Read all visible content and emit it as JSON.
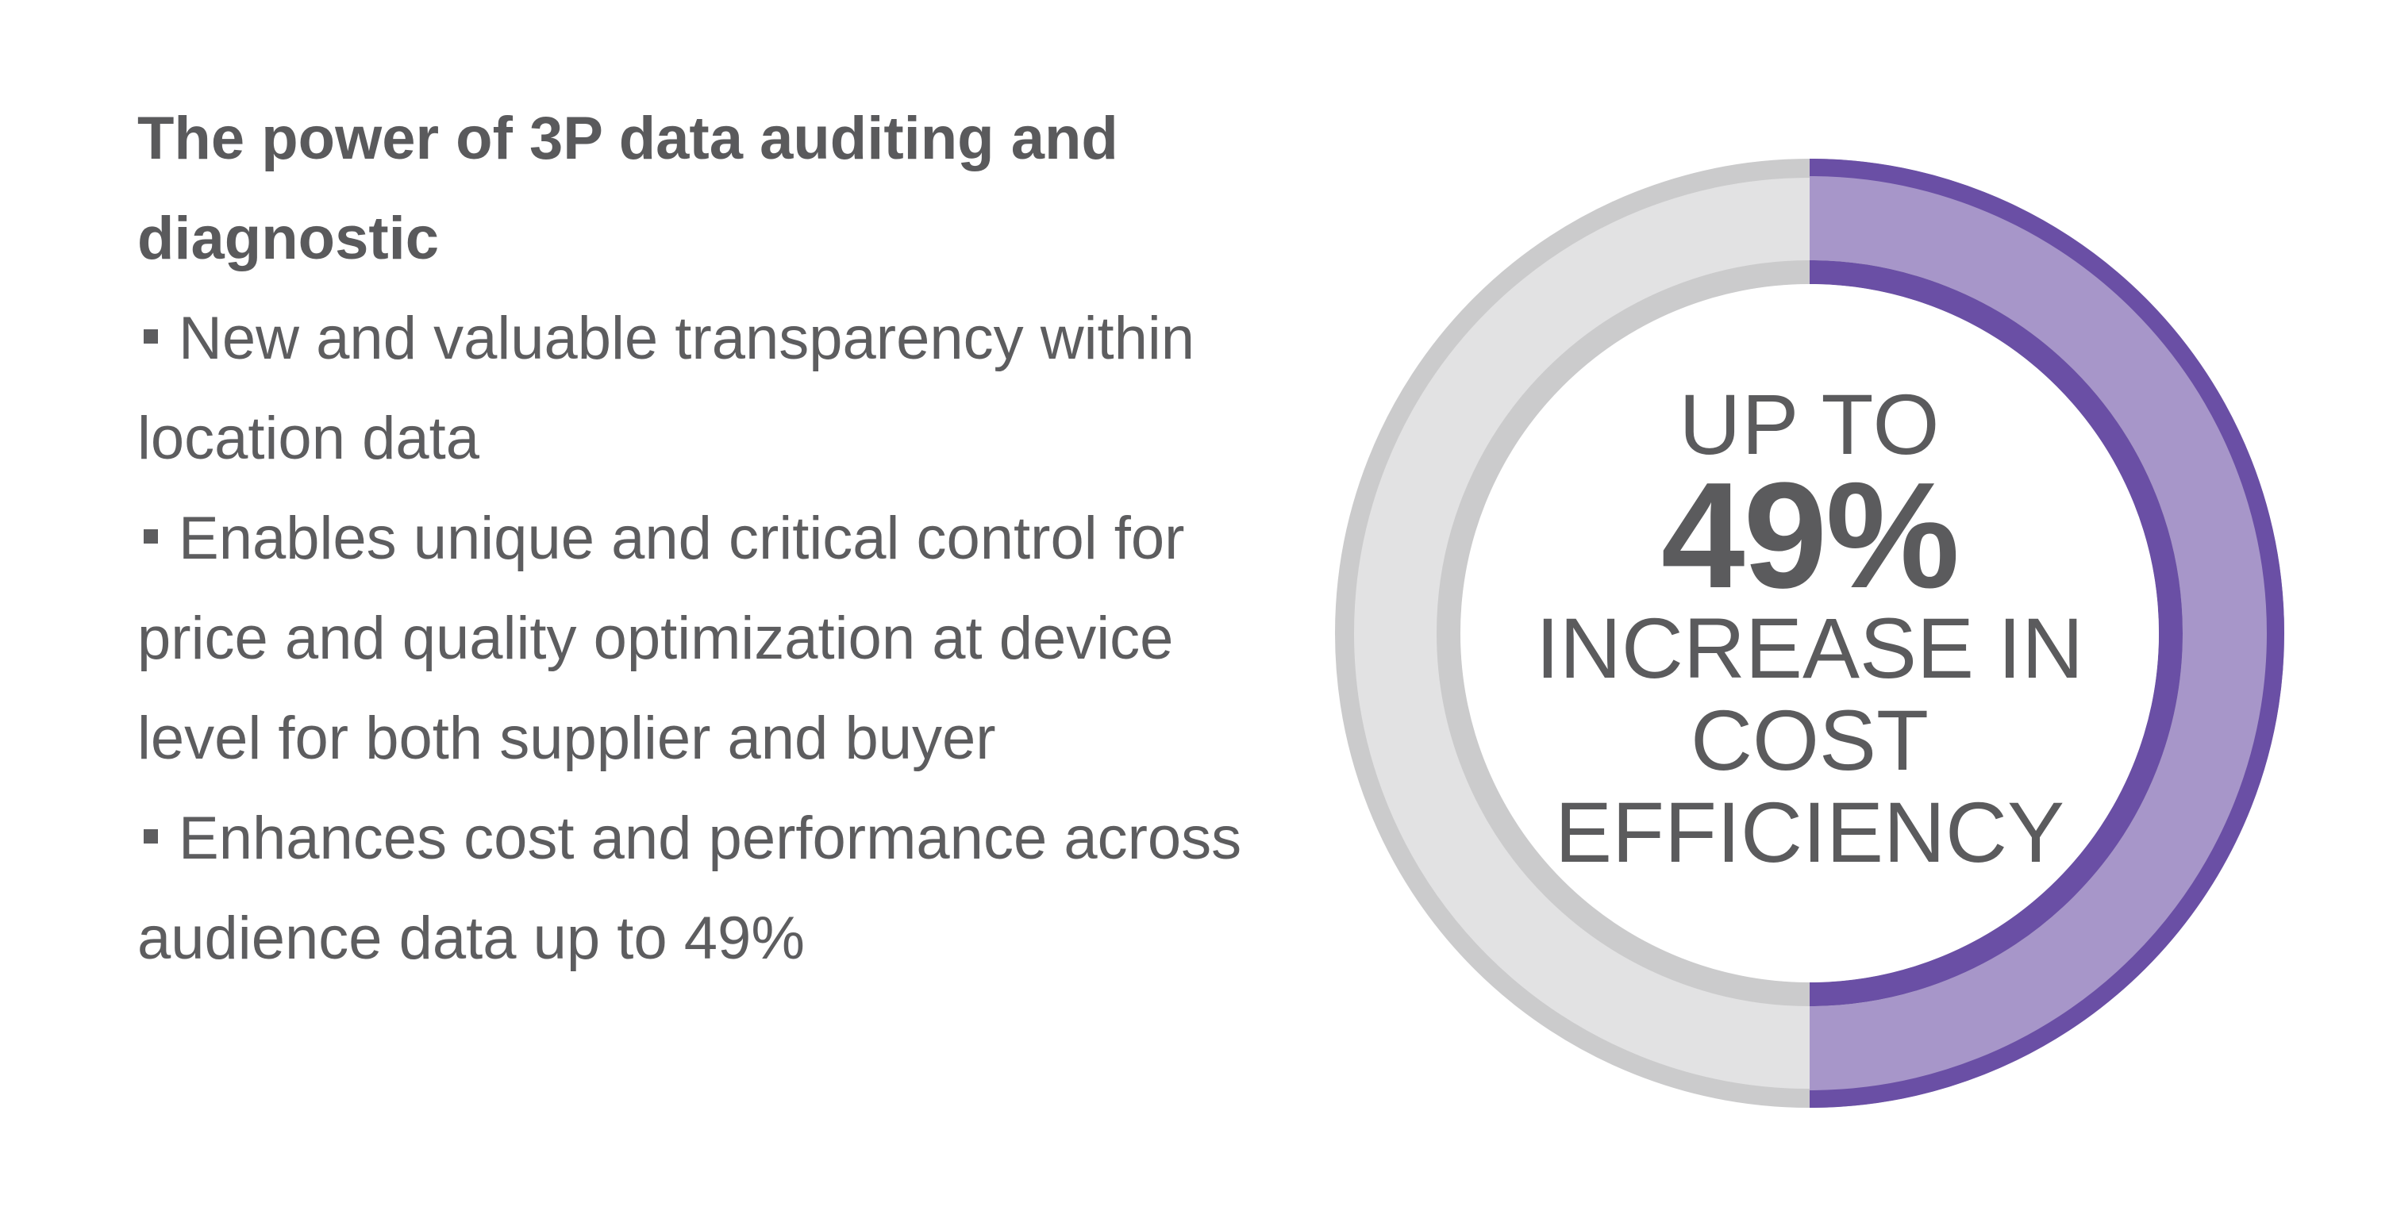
{
  "heading": "The power of 3P data auditing and diagnostic",
  "bullets": [
    "New and valuable transparency within location data",
    "Enables unique and critical control for price and quality optimization at device level for both supplier and buyer",
    "Enhances cost and performance across audience data up to 49%"
  ],
  "stat": {
    "prefix": "UP TO",
    "value_label": "49%",
    "caption": "INCREASE IN COST EFFICIENCY",
    "progress_fraction": 0.5
  },
  "colors": {
    "text": "#5b5b5d",
    "ring_track": "#e2e2e3",
    "ring_track_border": "#cbcbcc",
    "ring_fill": "#a796c9",
    "ring_fill_border": "#6a4fa5"
  }
}
